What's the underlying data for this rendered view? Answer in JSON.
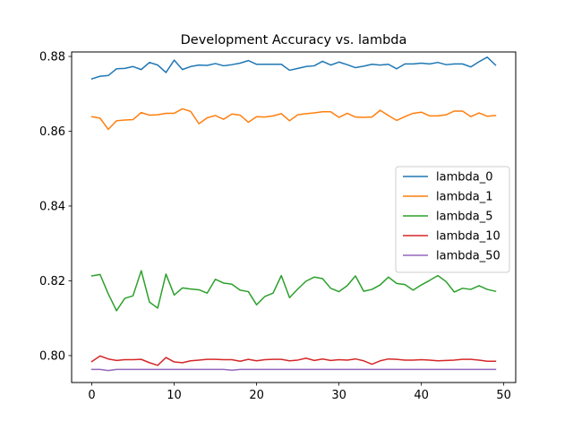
{
  "chart_data": {
    "type": "line",
    "title": "Development Accuracy vs. lambda",
    "xlabel": "",
    "ylabel": "",
    "xlim": [
      -2.45,
      51.45
    ],
    "ylim": [
      0.7928,
      0.8812
    ],
    "xticks": [
      0,
      10,
      20,
      30,
      40,
      50
    ],
    "yticks": [
      0.8,
      0.82,
      0.84,
      0.86,
      0.88
    ],
    "ytick_labels": [
      "0.80",
      "0.82",
      "0.84",
      "0.86",
      "0.88"
    ],
    "grid": false,
    "legend_placement": "center-right",
    "x": [
      0,
      1,
      2,
      3,
      4,
      5,
      6,
      7,
      8,
      9,
      10,
      11,
      12,
      13,
      14,
      15,
      16,
      17,
      18,
      19,
      20,
      21,
      22,
      23,
      24,
      25,
      26,
      27,
      28,
      29,
      30,
      31,
      32,
      33,
      34,
      35,
      36,
      37,
      38,
      39,
      40,
      41,
      42,
      43,
      44,
      45,
      46,
      47,
      48,
      49
    ],
    "series": [
      {
        "name": "lambda_0",
        "color": "#1f77b4",
        "values": [
          0.874,
          0.8747,
          0.8749,
          0.8767,
          0.8768,
          0.8773,
          0.8765,
          0.8784,
          0.8777,
          0.8757,
          0.879,
          0.8765,
          0.8773,
          0.8777,
          0.8776,
          0.8781,
          0.8775,
          0.8778,
          0.8782,
          0.8789,
          0.8779,
          0.8779,
          0.8779,
          0.8779,
          0.8763,
          0.8768,
          0.8773,
          0.8775,
          0.8787,
          0.8777,
          0.8785,
          0.8778,
          0.877,
          0.8774,
          0.8779,
          0.8777,
          0.8779,
          0.8767,
          0.878,
          0.878,
          0.8782,
          0.878,
          0.8784,
          0.8778,
          0.878,
          0.878,
          0.8772,
          0.8786,
          0.8798,
          0.8777
        ]
      },
      {
        "name": "lambda_1",
        "color": "#ff7f0e",
        "values": [
          0.8639,
          0.8635,
          0.8605,
          0.8628,
          0.863,
          0.8631,
          0.865,
          0.8643,
          0.8644,
          0.8648,
          0.8648,
          0.866,
          0.8653,
          0.862,
          0.8636,
          0.8642,
          0.8632,
          0.8646,
          0.8643,
          0.8624,
          0.8639,
          0.8638,
          0.8641,
          0.8647,
          0.8628,
          0.8644,
          0.8647,
          0.8649,
          0.8652,
          0.8652,
          0.8637,
          0.8648,
          0.8638,
          0.8637,
          0.8638,
          0.8656,
          0.8642,
          0.8629,
          0.8639,
          0.8648,
          0.8651,
          0.8641,
          0.8641,
          0.8644,
          0.8654,
          0.8654,
          0.8639,
          0.8649,
          0.864,
          0.8642
        ]
      },
      {
        "name": "lambda_5",
        "color": "#2ca02c",
        "values": [
          0.8213,
          0.8217,
          0.8165,
          0.812,
          0.8153,
          0.816,
          0.8227,
          0.8143,
          0.8127,
          0.8218,
          0.8162,
          0.8181,
          0.8178,
          0.8176,
          0.8167,
          0.8204,
          0.8194,
          0.8191,
          0.8175,
          0.8171,
          0.8136,
          0.8158,
          0.8167,
          0.8214,
          0.8155,
          0.8178,
          0.8199,
          0.821,
          0.8206,
          0.818,
          0.8171,
          0.8187,
          0.8213,
          0.8172,
          0.8177,
          0.8189,
          0.821,
          0.8193,
          0.819,
          0.8175,
          0.8189,
          0.8201,
          0.8214,
          0.8198,
          0.817,
          0.818,
          0.8177,
          0.8187,
          0.8177,
          0.8172
        ]
      },
      {
        "name": "lambda_10",
        "color": "#d62728",
        "values": [
          0.7984,
          0.7999,
          0.7991,
          0.7987,
          0.7989,
          0.7989,
          0.799,
          0.7981,
          0.7974,
          0.7995,
          0.7983,
          0.7981,
          0.7986,
          0.7988,
          0.799,
          0.799,
          0.7989,
          0.7989,
          0.7985,
          0.799,
          0.7986,
          0.7989,
          0.799,
          0.799,
          0.7986,
          0.7988,
          0.7993,
          0.7987,
          0.7991,
          0.7987,
          0.7989,
          0.7988,
          0.7991,
          0.7986,
          0.7977,
          0.7986,
          0.7991,
          0.799,
          0.7988,
          0.7988,
          0.7989,
          0.7988,
          0.7986,
          0.7987,
          0.7988,
          0.799,
          0.799,
          0.7988,
          0.7985,
          0.7985
        ]
      },
      {
        "name": "lambda_50",
        "color": "#9467bd",
        "values": [
          0.7963,
          0.7963,
          0.796,
          0.7963,
          0.7963,
          0.7963,
          0.7963,
          0.7963,
          0.7963,
          0.7963,
          0.7963,
          0.7963,
          0.7963,
          0.7963,
          0.7963,
          0.7963,
          0.7963,
          0.7961,
          0.7963,
          0.7963,
          0.7963,
          0.7963,
          0.7963,
          0.7963,
          0.7963,
          0.7963,
          0.7963,
          0.7963,
          0.7963,
          0.7963,
          0.7963,
          0.7963,
          0.7963,
          0.7963,
          0.7963,
          0.7963,
          0.7963,
          0.7963,
          0.7963,
          0.7963,
          0.7963,
          0.7963,
          0.7963,
          0.7963,
          0.7963,
          0.7963,
          0.7963,
          0.7963,
          0.7963,
          0.7963
        ]
      }
    ]
  }
}
